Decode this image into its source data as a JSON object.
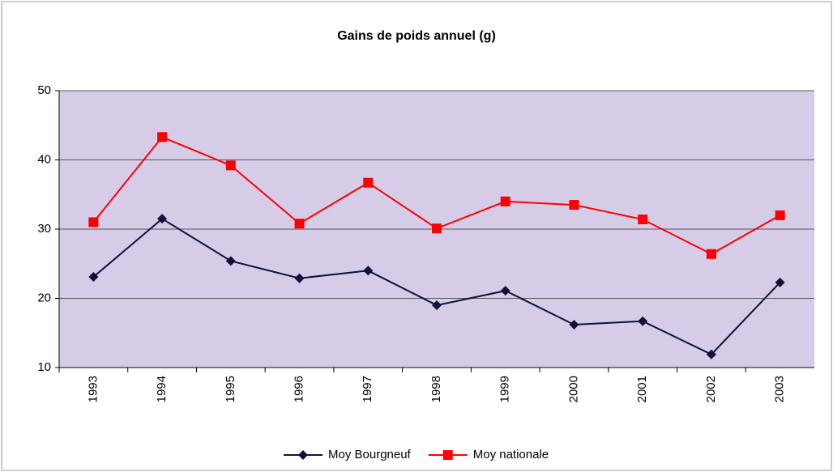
{
  "chart_data": {
    "type": "line",
    "title": "Gains de poids annuel (g)",
    "categories": [
      "1993",
      "1994",
      "1995",
      "1996",
      "1997",
      "1998",
      "1999",
      "2000",
      "2001",
      "2002",
      "2003"
    ],
    "series": [
      {
        "name": "Moy Bourgneuf",
        "color": "#10103a",
        "marker": "diamond",
        "values": [
          23.1,
          31.5,
          25.4,
          22.9,
          24,
          19,
          21.1,
          16.2,
          16.7,
          11.9,
          22.3
        ]
      },
      {
        "name": "Moy nationale",
        "color": "#ff0000",
        "marker": "square",
        "values": [
          31,
          43.3,
          39.2,
          30.8,
          36.7,
          30.1,
          34,
          33.5,
          31.4,
          26.4,
          32
        ]
      }
    ],
    "ylim": [
      10,
      50
    ],
    "yticks": [
      10,
      20,
      30,
      40,
      50
    ],
    "grid": true,
    "legend": "bottom"
  }
}
